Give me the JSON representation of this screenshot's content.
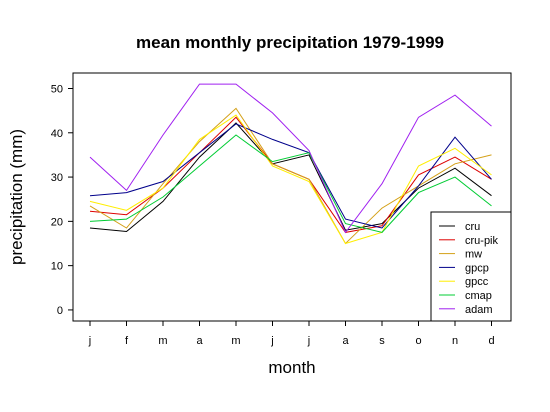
{
  "chart_data": {
    "type": "line",
    "title": "mean monthly precipitation 1979-1999",
    "xlabel": "month",
    "ylabel": "precipitation (mm)",
    "categories": [
      "j",
      "f",
      "m",
      "a",
      "m",
      "j",
      "j",
      "a",
      "s",
      "o",
      "n",
      "d"
    ],
    "ylim": [
      -2.5,
      53.5
    ],
    "yticks": [
      0,
      10,
      20,
      30,
      40,
      50
    ],
    "grid": false,
    "legend_position": "bottom-right",
    "series": [
      {
        "name": "cru",
        "color": "#000000",
        "values": [
          18.5,
          17.7,
          24.5,
          34.5,
          42.2,
          33.0,
          35.0,
          18.0,
          19.5,
          27.5,
          32.0,
          25.8
        ]
      },
      {
        "name": "cru-pik",
        "color": "#dd0000",
        "values": [
          22.3,
          21.5,
          27.5,
          35.5,
          43.5,
          33.0,
          29.5,
          17.5,
          19.0,
          30.5,
          34.5,
          29.5
        ]
      },
      {
        "name": "mw",
        "color": "#d4a017",
        "values": [
          23.5,
          18.5,
          28.5,
          38.0,
          45.5,
          33.0,
          29.5,
          15.0,
          23.0,
          28.0,
          33.0,
          35.0
        ]
      },
      {
        "name": "gpcp",
        "color": "#00008b",
        "values": [
          25.8,
          26.5,
          29.0,
          35.5,
          42.0,
          38.5,
          35.5,
          20.5,
          18.5,
          28.0,
          39.0,
          29.5
        ]
      },
      {
        "name": "gpcc",
        "color": "#ffee00",
        "values": [
          24.5,
          22.5,
          27.5,
          38.5,
          44.0,
          32.5,
          29.0,
          15.0,
          17.5,
          32.5,
          36.5,
          30.5
        ]
      },
      {
        "name": "cmap",
        "color": "#00cc33",
        "values": [
          20.0,
          20.5,
          25.5,
          32.5,
          39.5,
          33.5,
          35.5,
          19.5,
          17.5,
          26.5,
          30.0,
          23.5
        ]
      },
      {
        "name": "adam",
        "color": "#a020f0",
        "values": [
          34.5,
          27.0,
          39.5,
          51.0,
          51.0,
          44.5,
          36.0,
          17.5,
          28.5,
          43.5,
          48.5,
          41.5
        ]
      }
    ]
  }
}
